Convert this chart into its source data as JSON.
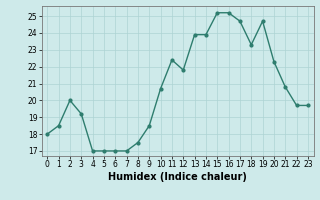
{
  "x": [
    0,
    1,
    2,
    3,
    4,
    5,
    6,
    7,
    8,
    9,
    10,
    11,
    12,
    13,
    14,
    15,
    16,
    17,
    18,
    19,
    20,
    21,
    22,
    23
  ],
  "y": [
    18,
    18.5,
    20,
    19.2,
    17,
    17,
    17,
    17,
    17.5,
    18.5,
    20.7,
    22.4,
    21.8,
    23.9,
    23.9,
    25.2,
    25.2,
    24.7,
    23.3,
    24.7,
    22.3,
    20.8,
    19.7,
    19.7
  ],
  "line_color": "#2e7d6e",
  "marker": "o",
  "markersize": 2.0,
  "linewidth": 1.0,
  "bg_color": "#ceeaea",
  "grid_color": "#aed4d4",
  "xlabel": "Humidex (Indice chaleur)",
  "ylim": [
    16.7,
    25.6
  ],
  "xlim": [
    -0.5,
    23.5
  ],
  "yticks": [
    17,
    18,
    19,
    20,
    21,
    22,
    23,
    24,
    25
  ],
  "xticks": [
    0,
    1,
    2,
    3,
    4,
    5,
    6,
    7,
    8,
    9,
    10,
    11,
    12,
    13,
    14,
    15,
    16,
    17,
    18,
    19,
    20,
    21,
    22,
    23
  ],
  "tick_fontsize": 5.5,
  "label_fontsize": 7.0
}
